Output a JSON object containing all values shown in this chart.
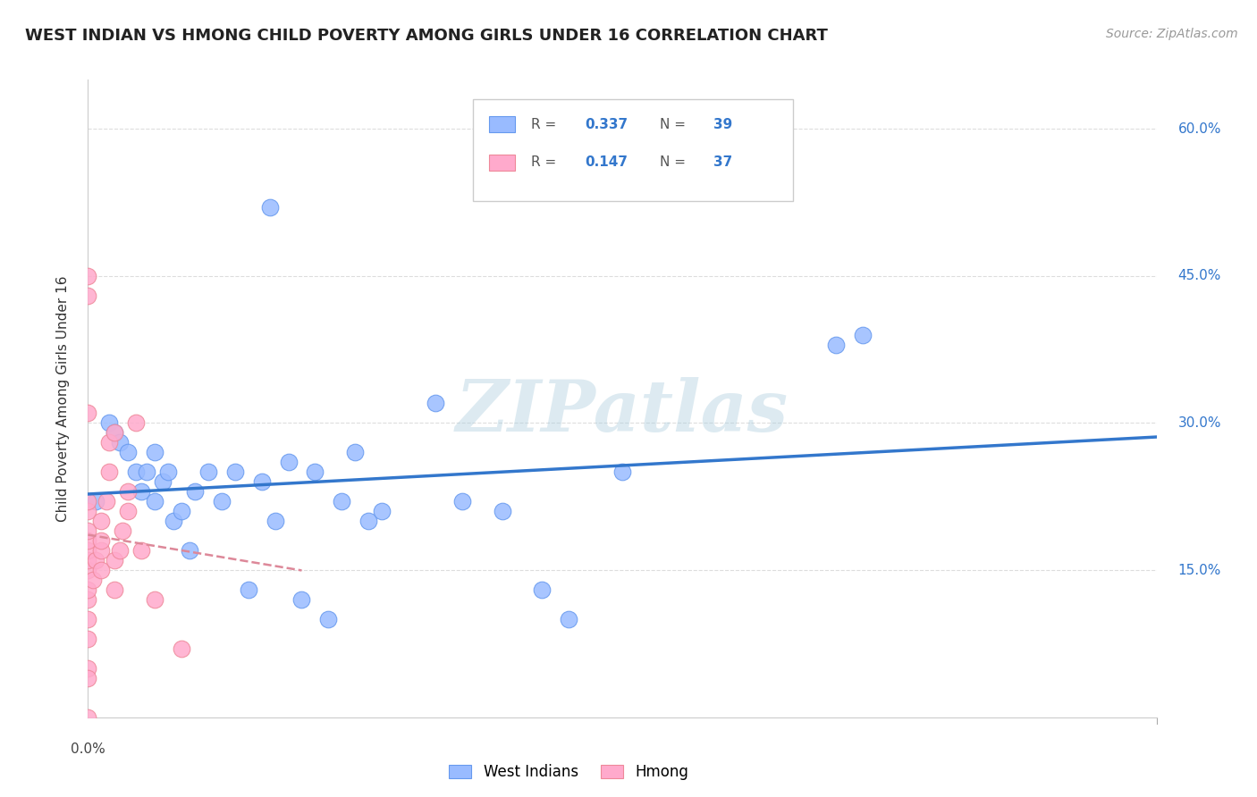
{
  "title": "WEST INDIAN VS HMONG CHILD POVERTY AMONG GIRLS UNDER 16 CORRELATION CHART",
  "source": "Source: ZipAtlas.com",
  "ylabel": "Child Poverty Among Girls Under 16",
  "ytick_labels": [
    "15.0%",
    "30.0%",
    "45.0%",
    "60.0%"
  ],
  "ytick_values": [
    0.15,
    0.3,
    0.45,
    0.6
  ],
  "xlim": [
    0.0,
    0.4
  ],
  "ylim": [
    0.0,
    0.65
  ],
  "west_indian_color": "#99BBFF",
  "west_indian_edge": "#6699EE",
  "hmong_color": "#FFAACC",
  "hmong_edge": "#EE8899",
  "trend_blue": "#3377CC",
  "trend_pink": "#DD8899",
  "west_indian_R": 0.337,
  "west_indian_N": 39,
  "hmong_R": 0.147,
  "hmong_N": 37,
  "legend_label_west": "West Indians",
  "legend_label_hmong": "Hmong",
  "watermark": "ZIPatlas",
  "watermark_color": "#AACCDD",
  "west_indian_x": [
    0.003,
    0.008,
    0.01,
    0.012,
    0.015,
    0.018,
    0.02,
    0.022,
    0.025,
    0.025,
    0.028,
    0.03,
    0.032,
    0.035,
    0.038,
    0.04,
    0.045,
    0.05,
    0.055,
    0.06,
    0.065,
    0.068,
    0.07,
    0.075,
    0.08,
    0.085,
    0.09,
    0.095,
    0.1,
    0.105,
    0.11,
    0.13,
    0.14,
    0.155,
    0.17,
    0.18,
    0.2,
    0.28,
    0.29
  ],
  "west_indian_y": [
    0.22,
    0.3,
    0.29,
    0.28,
    0.27,
    0.25,
    0.23,
    0.25,
    0.27,
    0.22,
    0.24,
    0.25,
    0.2,
    0.21,
    0.17,
    0.23,
    0.25,
    0.22,
    0.25,
    0.13,
    0.24,
    0.52,
    0.2,
    0.26,
    0.12,
    0.25,
    0.1,
    0.22,
    0.27,
    0.2,
    0.21,
    0.32,
    0.22,
    0.21,
    0.13,
    0.1,
    0.25,
    0.38,
    0.39
  ],
  "hmong_x": [
    0.0,
    0.0,
    0.0,
    0.0,
    0.0,
    0.0,
    0.0,
    0.0,
    0.0,
    0.0,
    0.0,
    0.0,
    0.0,
    0.0,
    0.0,
    0.0,
    0.0,
    0.002,
    0.003,
    0.005,
    0.005,
    0.005,
    0.005,
    0.007,
    0.008,
    0.008,
    0.01,
    0.01,
    0.01,
    0.012,
    0.013,
    0.015,
    0.015,
    0.018,
    0.02,
    0.025,
    0.035
  ],
  "hmong_y": [
    0.0,
    0.05,
    0.08,
    0.1,
    0.12,
    0.13,
    0.15,
    0.16,
    0.17,
    0.18,
    0.19,
    0.21,
    0.22,
    0.31,
    0.43,
    0.45,
    0.04,
    0.14,
    0.16,
    0.15,
    0.17,
    0.18,
    0.2,
    0.22,
    0.25,
    0.28,
    0.13,
    0.16,
    0.29,
    0.17,
    0.19,
    0.21,
    0.23,
    0.3,
    0.17,
    0.12,
    0.07
  ],
  "background_color": "#FFFFFF",
  "grid_color": "#DDDDDD",
  "title_fontsize": 13,
  "axis_label_fontsize": 11,
  "tick_fontsize": 11,
  "legend_fontsize": 12,
  "source_fontsize": 10
}
